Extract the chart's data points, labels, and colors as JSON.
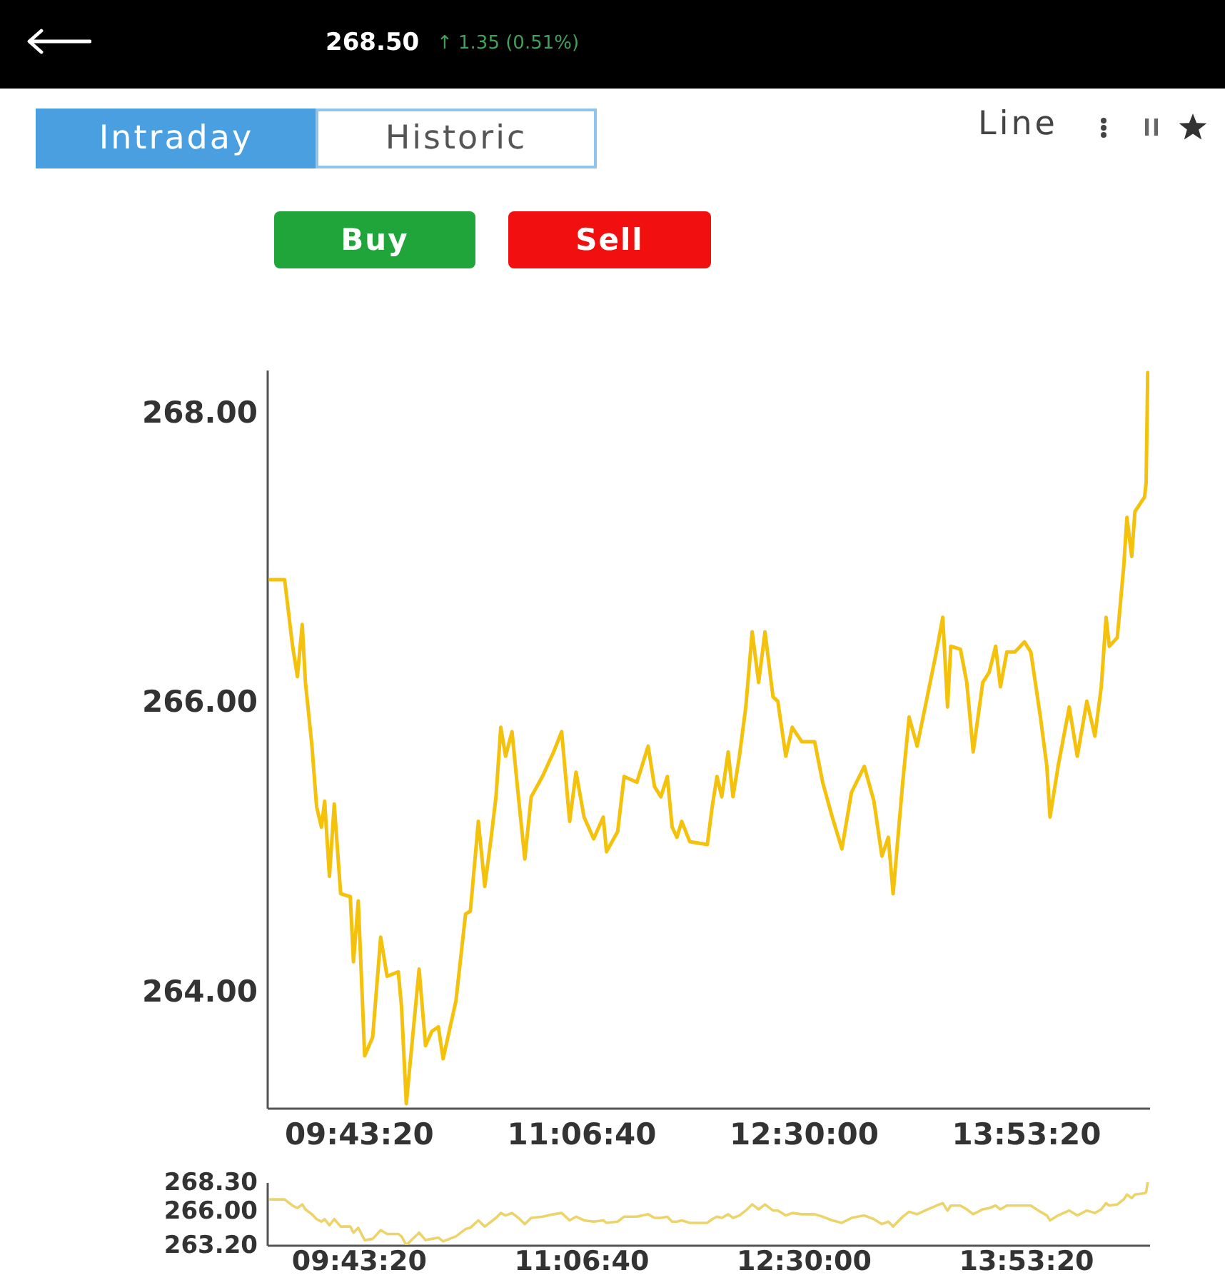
{
  "chart_data": [
    {
      "type": "line",
      "annotations": [
        "268.50",
        "↑ 1.35 (0.51%)",
        "Intraday",
        "Historic",
        "Line",
        "Buy",
        "Sell"
      ],
      "x": [
        9.17,
        9.26,
        9.31,
        9.34,
        9.37,
        9.39,
        9.43,
        9.46,
        9.49,
        9.51,
        9.54,
        9.57,
        9.61,
        9.67,
        9.69,
        9.72,
        9.76,
        9.81,
        9.86,
        9.9,
        9.97,
        9.99,
        10.02,
        10.1,
        10.14,
        10.18,
        10.22,
        10.25,
        10.33,
        10.39,
        10.42,
        10.47,
        10.51,
        10.55,
        10.58,
        10.61,
        10.64,
        10.68,
        10.72,
        10.76,
        10.8,
        10.87,
        10.94,
        10.99,
        11.04,
        11.08,
        11.13,
        11.19,
        11.25,
        11.27,
        11.34,
        11.38,
        11.46,
        11.53,
        11.57,
        11.61,
        11.65,
        11.68,
        11.71,
        11.74,
        11.79,
        11.9,
        11.93,
        11.96,
        11.99,
        12.03,
        12.06,
        12.1,
        12.14,
        12.18,
        12.22,
        12.26,
        12.31,
        12.34,
        12.39,
        12.43,
        12.49,
        12.57,
        12.62,
        12.68,
        12.74,
        12.8,
        12.88,
        12.94,
        12.99,
        13.03,
        13.06,
        13.12,
        13.16,
        13.21,
        13.26,
        13.33,
        13.37,
        13.4,
        13.42,
        13.48,
        13.52,
        13.56,
        13.62,
        13.66,
        13.7,
        13.73,
        13.77,
        13.82,
        13.88,
        13.92,
        13.98,
        14.02,
        14.04,
        14.09,
        14.16,
        14.21,
        14.27,
        14.32,
        14.36,
        14.39,
        14.41,
        14.46,
        14.5,
        14.52,
        14.55,
        14.57,
        14.63,
        14.64,
        14.65
      ],
      "series": [
        {
          "color": "#f4c20d",
          "values": [
            266.85,
            266.85,
            266.39,
            266.18,
            266.54,
            266.14,
            265.71,
            265.28,
            265.14,
            265.32,
            264.8,
            265.3,
            264.68,
            264.66,
            264.21,
            264.63,
            263.56,
            263.69,
            264.38,
            264.11,
            264.14,
            263.9,
            263.23,
            264.16,
            263.63,
            263.73,
            263.76,
            263.54,
            263.94,
            264.54,
            264.56,
            265.18,
            264.73,
            265.07,
            265.35,
            265.83,
            265.63,
            265.8,
            265.35,
            264.92,
            265.35,
            265.49,
            265.66,
            265.8,
            265.18,
            265.52,
            265.21,
            265.06,
            265.21,
            264.97,
            265.11,
            265.49,
            265.45,
            265.7,
            265.42,
            265.35,
            265.49,
            265.14,
            265.07,
            265.18,
            265.04,
            265.02,
            265.28,
            265.49,
            265.35,
            265.66,
            265.35,
            265.63,
            265.97,
            266.49,
            266.14,
            266.49,
            266.04,
            266.01,
            265.63,
            265.83,
            265.73,
            265.73,
            265.45,
            265.21,
            264.99,
            265.38,
            265.56,
            265.32,
            264.94,
            265.07,
            264.68,
            265.45,
            265.9,
            265.7,
            265.97,
            266.35,
            266.59,
            265.97,
            266.39,
            266.37,
            266.14,
            265.66,
            266.14,
            266.21,
            266.39,
            266.11,
            266.35,
            266.35,
            266.42,
            266.35,
            265.9,
            265.56,
            265.21,
            265.56,
            265.97,
            265.63,
            266.01,
            265.77,
            266.11,
            266.59,
            266.39,
            266.45,
            266.94,
            267.28,
            267.01,
            267.32,
            267.42,
            267.52,
            268.28
          ]
        }
      ],
      "xlim": [
        9.15,
        14.66
      ],
      "xticks": [
        {
          "value": 9.72222,
          "label": "09:43:20"
        },
        {
          "value": 11.11111,
          "label": "11:06:40"
        },
        {
          "value": 12.5,
          "label": "12:30:00"
        },
        {
          "value": 13.88889,
          "label": "13:53:20"
        }
      ],
      "ylim": [
        263.2,
        268.3
      ],
      "yticks": [
        {
          "value": 264,
          "label": "264.00"
        },
        {
          "value": 266,
          "label": "266.00"
        },
        {
          "value": 268,
          "label": "268.00"
        }
      ]
    },
    {
      "type": "line",
      "x": [
        9.17,
        9.26,
        9.31,
        9.34,
        9.37,
        9.39,
        9.43,
        9.46,
        9.49,
        9.51,
        9.54,
        9.57,
        9.61,
        9.67,
        9.69,
        9.72,
        9.76,
        9.81,
        9.86,
        9.9,
        9.97,
        9.99,
        10.02,
        10.1,
        10.14,
        10.18,
        10.22,
        10.25,
        10.33,
        10.39,
        10.42,
        10.47,
        10.51,
        10.55,
        10.58,
        10.61,
        10.64,
        10.68,
        10.72,
        10.76,
        10.8,
        10.87,
        10.94,
        10.99,
        11.04,
        11.08,
        11.13,
        11.19,
        11.25,
        11.27,
        11.34,
        11.38,
        11.46,
        11.53,
        11.57,
        11.61,
        11.65,
        11.68,
        11.71,
        11.74,
        11.79,
        11.9,
        11.93,
        11.96,
        11.99,
        12.03,
        12.06,
        12.1,
        12.14,
        12.18,
        12.22,
        12.26,
        12.31,
        12.34,
        12.39,
        12.43,
        12.49,
        12.57,
        12.62,
        12.68,
        12.74,
        12.8,
        12.88,
        12.94,
        12.99,
        13.03,
        13.06,
        13.12,
        13.16,
        13.21,
        13.26,
        13.33,
        13.37,
        13.4,
        13.42,
        13.48,
        13.52,
        13.56,
        13.62,
        13.66,
        13.7,
        13.73,
        13.77,
        13.82,
        13.88,
        13.92,
        13.98,
        14.02,
        14.04,
        14.09,
        14.16,
        14.21,
        14.27,
        14.32,
        14.36,
        14.39,
        14.41,
        14.46,
        14.5,
        14.52,
        14.55,
        14.57,
        14.63,
        14.64,
        14.65
      ],
      "series": [
        {
          "color": "#ecd36a",
          "values": [
            266.9,
            266.9,
            266.4,
            266.2,
            266.5,
            266.1,
            265.7,
            265.3,
            265.1,
            265.3,
            264.8,
            265.3,
            264.7,
            264.7,
            264.2,
            264.6,
            263.6,
            263.7,
            264.4,
            264.1,
            264.1,
            263.9,
            263.2,
            264.2,
            263.6,
            263.7,
            263.8,
            263.5,
            263.9,
            264.5,
            264.6,
            265.2,
            264.7,
            265.1,
            265.4,
            265.8,
            265.6,
            265.8,
            265.4,
            264.9,
            265.4,
            265.5,
            265.7,
            265.8,
            265.2,
            265.5,
            265.2,
            265.1,
            265.2,
            265.0,
            265.1,
            265.5,
            265.5,
            265.7,
            265.4,
            265.4,
            265.5,
            265.1,
            265.1,
            265.2,
            265.0,
            265.0,
            265.3,
            265.5,
            265.4,
            265.7,
            265.4,
            265.6,
            266.0,
            266.5,
            266.1,
            266.5,
            266.0,
            266.0,
            265.6,
            265.8,
            265.7,
            265.7,
            265.5,
            265.2,
            265.0,
            265.4,
            265.6,
            265.3,
            264.9,
            265.1,
            264.7,
            265.5,
            265.9,
            265.7,
            266.0,
            266.4,
            266.6,
            266.0,
            266.4,
            266.4,
            266.1,
            265.7,
            266.1,
            266.2,
            266.4,
            266.1,
            266.4,
            266.4,
            266.4,
            266.4,
            265.9,
            265.6,
            265.2,
            265.6,
            266.0,
            265.6,
            266.0,
            265.8,
            266.1,
            266.6,
            266.4,
            266.5,
            266.9,
            267.3,
            267.0,
            267.3,
            267.4,
            267.5,
            268.3
          ]
        }
      ],
      "xlim": [
        9.15,
        14.66
      ],
      "xticks": [
        {
          "value": 9.72222,
          "label": "09:43:20"
        },
        {
          "value": 11.11111,
          "label": "11:06:40"
        },
        {
          "value": 12.5,
          "label": "12:30:00"
        },
        {
          "value": 13.88889,
          "label": "13:53:20"
        }
      ],
      "ylim": [
        263.2,
        268.3
      ],
      "yticks": [
        {
          "value": 263.2,
          "label": "263.20"
        },
        {
          "value": 266,
          "label": "266.00"
        },
        {
          "value": 268.3,
          "label": "268.30"
        }
      ]
    }
  ]
}
